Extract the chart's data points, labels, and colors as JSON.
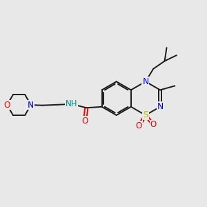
{
  "bg_color": "#e8e8e8",
  "bond_color": "#1a1a1a",
  "colors": {
    "N": "#0000ee",
    "O": "#ee0000",
    "S": "#bbbb00",
    "NH": "#008b8b",
    "C": "#1a1a1a"
  },
  "figsize": [
    3.0,
    3.0
  ],
  "dpi": 100,
  "lw": 1.4
}
